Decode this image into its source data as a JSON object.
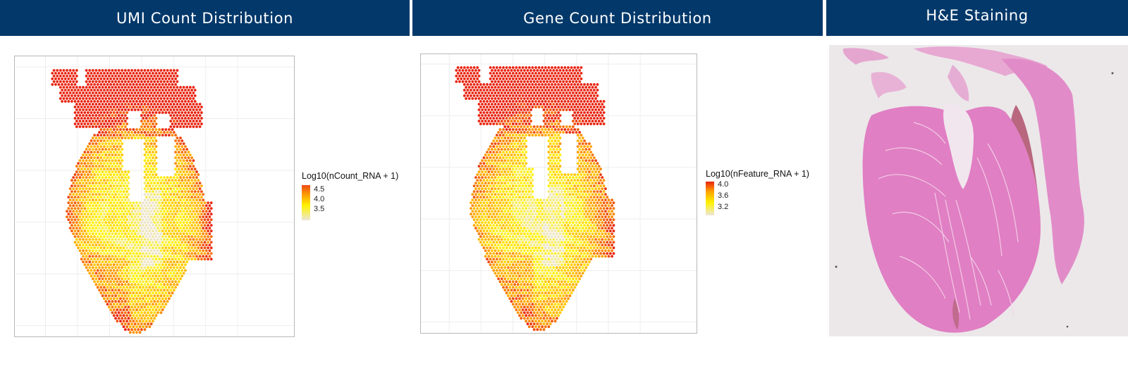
{
  "headers": {
    "umi": "UMI Count Distribution",
    "gene": "Gene Count Distribution",
    "he": "H&E Staining"
  },
  "colors": {
    "header_bg": "#02386a",
    "header_text": "#ffffff",
    "scale_low": "#ece4cc",
    "scale_mid": "#fff200",
    "scale_midhigh": "#ffa500",
    "scale_high": "#e8230f",
    "he_pink": "#e07fc3",
    "he_bg": "#ece8ea"
  },
  "legend_umi": {
    "title": "Log10(nCount_RNA + 1)",
    "ticks": [
      "4.5",
      "4.0",
      "3.5"
    ]
  },
  "legend_gene": {
    "title": "Log10(nFeature_RNA + 1)",
    "ticks": [
      "4.0",
      "3.6",
      "3.2"
    ]
  },
  "chart_data": [
    {
      "type": "scatter",
      "subtype": "spatial-feature-plot",
      "title": "UMI Count Distribution",
      "xlabel": "",
      "ylabel": "",
      "grid": true,
      "legend_position": "right",
      "color_scale": {
        "title": "Log10(nCount_RNA + 1)",
        "ticks": [
          4.5,
          4.0,
          3.5
        ],
        "range_approx": [
          3.3,
          4.7
        ],
        "colors": [
          "#ece4cc",
          "#fff200",
          "#ffa500",
          "#e8230f"
        ]
      },
      "description": "Hexagonal grid of Visium spots covering a heart tissue section; higher values (orange/red) along the outer myocardial wall and apex, lower values (yellow/pale) in the interior and near the central cavity."
    },
    {
      "type": "scatter",
      "subtype": "spatial-feature-plot",
      "title": "Gene Count Distribution",
      "xlabel": "",
      "ylabel": "",
      "grid": true,
      "legend_position": "right",
      "color_scale": {
        "title": "Log10(nFeature_RNA + 1)",
        "ticks": [
          4.0,
          3.6,
          3.2
        ],
        "range_approx": [
          3.0,
          4.05
        ],
        "colors": [
          "#ece4cc",
          "#fff200",
          "#ffa500",
          "#e8230f"
        ]
      },
      "description": "Same spot layout; gene counts highest at the outer wall and lower-left apex region, lowest in the central septum region."
    }
  ]
}
